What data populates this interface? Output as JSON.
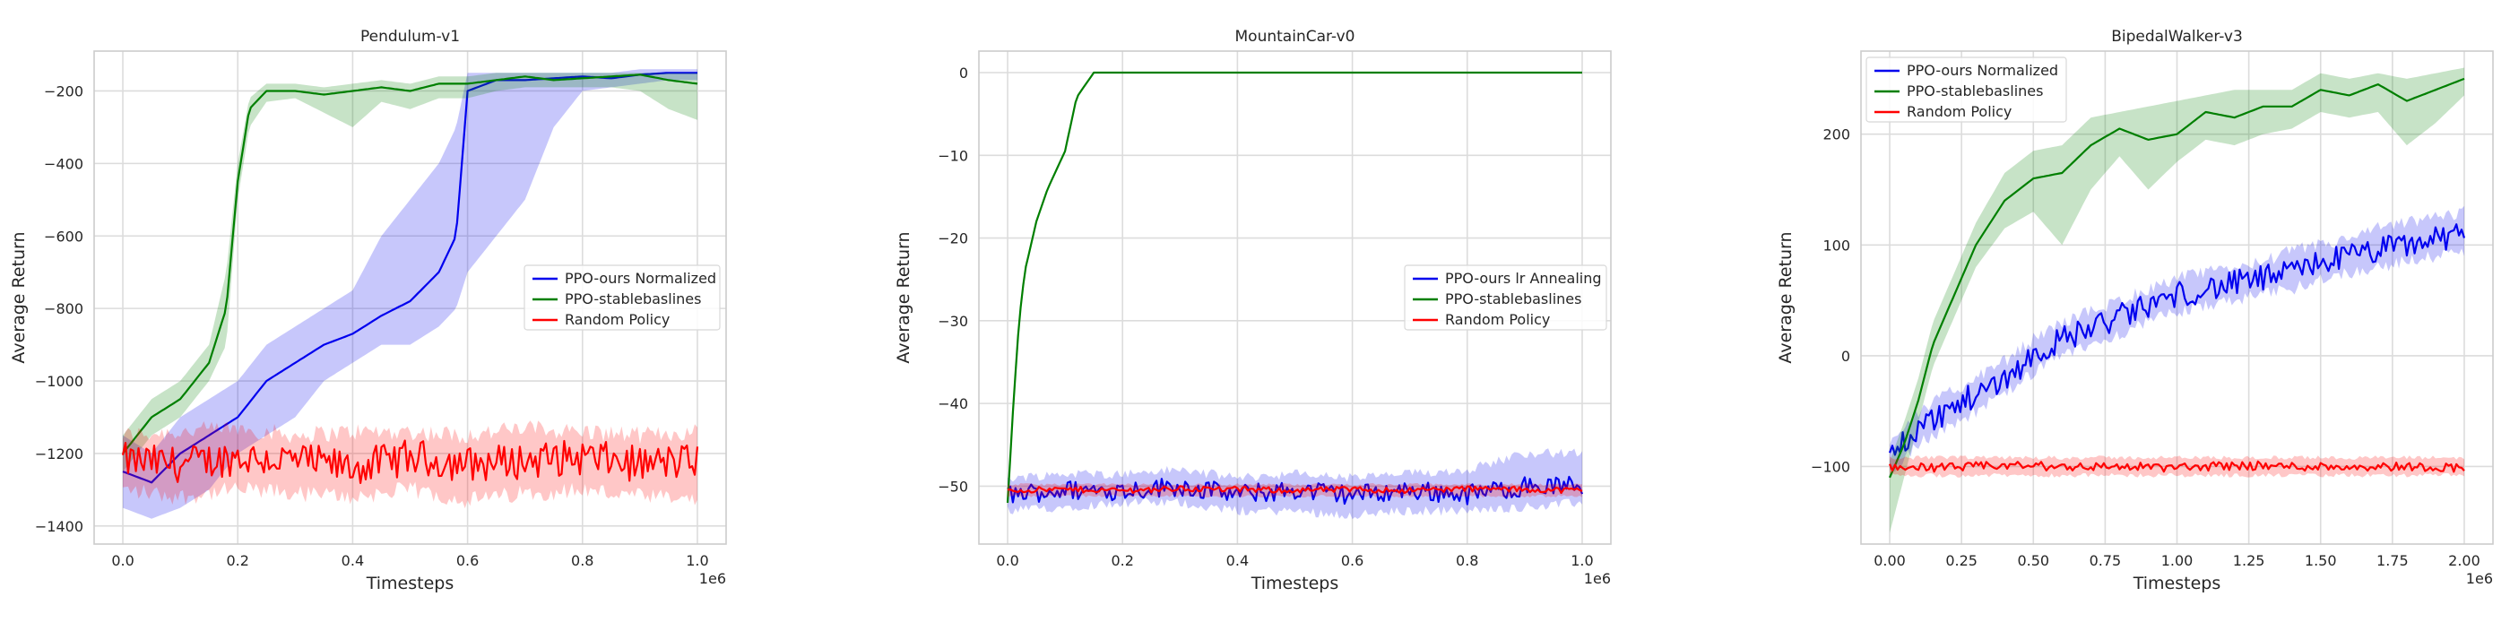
{
  "chart_data": [
    {
      "type": "line",
      "title": "Pendulum-v1",
      "xlabel": "Timesteps",
      "ylabel": "Average Return",
      "x_multiplier_label": "1e6",
      "xlim": [
        -0.05,
        1.05
      ],
      "ylim": [
        -1450,
        -90
      ],
      "xticks": [
        0.0,
        0.2,
        0.4,
        0.6,
        0.8,
        1.0
      ],
      "xtick_labels": [
        "0.0",
        "0.2",
        "0.4",
        "0.6",
        "0.8",
        "1.0"
      ],
      "yticks": [
        -1400,
        -1200,
        -1000,
        -800,
        -600,
        -400,
        -200
      ],
      "ytick_labels": [
        "−1400",
        "−1200",
        "−1000",
        "−800",
        "−600",
        "−400",
        "−200"
      ],
      "grid": true,
      "legend_position": "center-right",
      "series": [
        {
          "name": "PPO-ours Normalized",
          "color": "#0000ee",
          "x": [
            0,
            0.05,
            0.1,
            0.15,
            0.2,
            0.25,
            0.3,
            0.35,
            0.4,
            0.45,
            0.5,
            0.55,
            0.58,
            0.6,
            0.65,
            0.7,
            0.75,
            0.8,
            0.85,
            0.9,
            0.95,
            1.0
          ],
          "mean": [
            -1250,
            -1280,
            -1200,
            -1150,
            -1100,
            -1000,
            -950,
            -900,
            -870,
            -820,
            -780,
            -700,
            -600,
            -200,
            -170,
            -170,
            -165,
            -160,
            -165,
            -155,
            -150,
            -150
          ],
          "upper": [
            -1150,
            -1200,
            -1100,
            -1050,
            -1000,
            -900,
            -850,
            -800,
            -750,
            -600,
            -500,
            -400,
            -300,
            -150,
            -150,
            -150,
            -150,
            -150,
            -150,
            -140,
            -140,
            -140
          ],
          "lower": [
            -1350,
            -1380,
            -1350,
            -1300,
            -1200,
            -1150,
            -1100,
            -1000,
            -950,
            -900,
            -900,
            -850,
            -800,
            -700,
            -600,
            -500,
            -300,
            -200,
            -190,
            -180,
            -170,
            -170
          ]
        },
        {
          "name": "PPO-stablebaslines",
          "color": "#007f00",
          "x": [
            0,
            0.05,
            0.1,
            0.15,
            0.18,
            0.2,
            0.22,
            0.25,
            0.3,
            0.35,
            0.4,
            0.45,
            0.5,
            0.55,
            0.6,
            0.65,
            0.7,
            0.75,
            0.8,
            0.85,
            0.9,
            0.95,
            1.0
          ],
          "mean": [
            -1200,
            -1100,
            -1050,
            -950,
            -800,
            -450,
            -250,
            -200,
            -200,
            -210,
            -200,
            -190,
            -200,
            -180,
            -180,
            -170,
            -160,
            -170,
            -165,
            -160,
            -155,
            -170,
            -180
          ],
          "upper": [
            -1150,
            -1050,
            -1000,
            -900,
            -700,
            -400,
            -220,
            -180,
            -180,
            -190,
            -180,
            -170,
            -180,
            -160,
            -160,
            -150,
            -150,
            -150,
            -150,
            -150,
            -150,
            -150,
            -150
          ],
          "lower": [
            -1250,
            -1150,
            -1100,
            -1000,
            -900,
            -500,
            -300,
            -230,
            -220,
            -260,
            -300,
            -230,
            -250,
            -220,
            -220,
            -200,
            -190,
            -190,
            -190,
            -190,
            -200,
            -250,
            -280
          ]
        },
        {
          "name": "Random Policy",
          "color": "#ff0000",
          "x": [
            0,
            0.1,
            0.2,
            0.3,
            0.4,
            0.5,
            0.6,
            0.7,
            0.8,
            0.9,
            1.0
          ],
          "mean": [
            -1220,
            -1230,
            -1210,
            -1220,
            -1240,
            -1210,
            -1230,
            -1220,
            -1210,
            -1230,
            -1220
          ],
          "upper": [
            -1150,
            -1140,
            -1130,
            -1150,
            -1140,
            -1140,
            -1150,
            -1130,
            -1140,
            -1150,
            -1140
          ],
          "lower": [
            -1300,
            -1320,
            -1300,
            -1310,
            -1320,
            -1300,
            -1330,
            -1310,
            -1300,
            -1320,
            -1330
          ],
          "noise": 50
        }
      ]
    },
    {
      "type": "line",
      "title": "MountainCar-v0",
      "xlabel": "Timesteps",
      "ylabel": "Average Return",
      "x_multiplier_label": "1e6",
      "xlim": [
        -0.05,
        1.05
      ],
      "ylim": [
        -57,
        2.6
      ],
      "xticks": [
        0.0,
        0.2,
        0.4,
        0.6,
        0.8,
        1.0
      ],
      "xtick_labels": [
        "0.0",
        "0.2",
        "0.4",
        "0.6",
        "0.8",
        "1.0"
      ],
      "yticks": [
        -50,
        -40,
        -30,
        -20,
        -10,
        0
      ],
      "ytick_labels": [
        "−50",
        "−40",
        "−30",
        "−20",
        "−10",
        "0"
      ],
      "grid": true,
      "legend_position": "center-right",
      "series": [
        {
          "name": "PPO-ours lr Annealing",
          "color": "#0000ee",
          "x": [
            0,
            0.1,
            0.2,
            0.3,
            0.4,
            0.5,
            0.6,
            0.7,
            0.8,
            0.9,
            1.0
          ],
          "mean": [
            -51,
            -50.5,
            -50.5,
            -50,
            -51,
            -50.5,
            -51,
            -50.5,
            -51,
            -50,
            -50
          ],
          "upper": [
            -49,
            -48.5,
            -48.5,
            -48,
            -49,
            -48.5,
            -49,
            -48.5,
            -48,
            -46,
            -46
          ],
          "lower": [
            -53,
            -52.5,
            -52,
            -52,
            -53,
            -53,
            -53.5,
            -53,
            -53,
            -52.5,
            -52
          ],
          "noise": 1.2
        },
        {
          "name": "PPO-stablebaslines",
          "color": "#007f00",
          "x": [
            0,
            0.01,
            0.02,
            0.03,
            0.05,
            0.07,
            0.09,
            0.1,
            0.12,
            0.15,
            0.2,
            0.4,
            0.6,
            0.8,
            1.0
          ],
          "mean": [
            -52,
            -40,
            -30,
            -24,
            -18,
            -14,
            -11,
            -9.5,
            -3,
            0,
            0,
            0,
            0,
            0,
            0
          ]
        },
        {
          "name": "Random Policy",
          "color": "#ff0000",
          "x": [
            0,
            0.1,
            0.2,
            0.3,
            0.4,
            0.5,
            0.6,
            0.7,
            0.8,
            0.9,
            1.0
          ],
          "mean": [
            -50.5,
            -50.4,
            -50.5,
            -50.3,
            -50.4,
            -50.5,
            -50.4,
            -50.5,
            -50.3,
            -50.4,
            -50.5
          ],
          "upper": [
            -49.8,
            -49.8,
            -49.8,
            -49.8,
            -49.8,
            -49.8,
            -49.8,
            -49.8,
            -49.8,
            -49.8,
            -49.8
          ],
          "lower": [
            -51.2,
            -51.2,
            -51.2,
            -51.2,
            -51.2,
            -51.2,
            -51.2,
            -51.2,
            -51.2,
            -51.2,
            -51.2
          ],
          "noise": 0.35
        }
      ]
    },
    {
      "type": "line",
      "title": "BipedalWalker-v3",
      "xlabel": "Timesteps",
      "ylabel": "Average Return",
      "x_multiplier_label": "1e6",
      "xlim": [
        -0.1,
        2.1
      ],
      "ylim": [
        -170,
        275
      ],
      "xticks": [
        0.0,
        0.25,
        0.5,
        0.75,
        1.0,
        1.25,
        1.5,
        1.75,
        2.0
      ],
      "xtick_labels": [
        "0.00",
        "0.25",
        "0.50",
        "0.75",
        "1.00",
        "1.25",
        "1.50",
        "1.75",
        "2.00"
      ],
      "yticks": [
        -100,
        0,
        100,
        200
      ],
      "ytick_labels": [
        "−100",
        "0",
        "100",
        "200"
      ],
      "grid": true,
      "legend_position": "top-left",
      "series": [
        {
          "name": "PPO-ours Normalized",
          "color": "#0000ee",
          "x": [
            0,
            0.1,
            0.2,
            0.3,
            0.4,
            0.5,
            0.6,
            0.7,
            0.8,
            0.9,
            1.0,
            1.1,
            1.2,
            1.3,
            1.4,
            1.5,
            1.6,
            1.7,
            1.8,
            1.9,
            2.0
          ],
          "mean": [
            -90,
            -65,
            -50,
            -35,
            -20,
            0,
            15,
            25,
            35,
            45,
            55,
            60,
            65,
            70,
            75,
            85,
            90,
            95,
            100,
            105,
            110
          ],
          "upper": [
            -75,
            -50,
            -35,
            -20,
            -5,
            15,
            30,
            40,
            50,
            60,
            70,
            75,
            80,
            85,
            95,
            100,
            105,
            115,
            120,
            125,
            130
          ],
          "lower": [
            -105,
            -80,
            -65,
            -50,
            -35,
            -15,
            0,
            10,
            20,
            30,
            40,
            45,
            50,
            55,
            60,
            70,
            75,
            80,
            85,
            90,
            95
          ],
          "noise": 12
        },
        {
          "name": "PPO-stablebaslines",
          "color": "#007f00",
          "x": [
            0,
            0.05,
            0.1,
            0.15,
            0.2,
            0.25,
            0.3,
            0.4,
            0.5,
            0.6,
            0.7,
            0.8,
            0.9,
            1.0,
            1.1,
            1.2,
            1.3,
            1.4,
            1.5,
            1.6,
            1.7,
            1.8,
            1.9,
            2.0
          ],
          "mean": [
            -110,
            -80,
            -40,
            10,
            40,
            70,
            100,
            140,
            160,
            165,
            190,
            205,
            195,
            200,
            220,
            215,
            225,
            225,
            240,
            235,
            245,
            230,
            240,
            250
          ],
          "upper": [
            -95,
            -60,
            -20,
            30,
            60,
            90,
            120,
            165,
            185,
            190,
            215,
            220,
            225,
            230,
            235,
            240,
            240,
            240,
            255,
            250,
            255,
            250,
            255,
            260
          ],
          "lower": [
            -160,
            -110,
            -60,
            -10,
            20,
            50,
            80,
            115,
            130,
            100,
            150,
            180,
            150,
            175,
            195,
            190,
            200,
            205,
            220,
            215,
            220,
            190,
            210,
            235
          ]
        },
        {
          "name": "Random Policy",
          "color": "#ff0000",
          "x": [
            0,
            0.2,
            0.4,
            0.6,
            0.8,
            1.0,
            1.2,
            1.4,
            1.6,
            1.8,
            2.0
          ],
          "mean": [
            -100,
            -101,
            -99,
            -100,
            -100,
            -101,
            -99,
            -100,
            -100,
            -100,
            -101
          ],
          "upper": [
            -92,
            -92,
            -92,
            -92,
            -92,
            -92,
            -92,
            -92,
            -92,
            -92,
            -92
          ],
          "lower": [
            -108,
            -108,
            -108,
            -108,
            -108,
            -108,
            -108,
            -108,
            -108,
            -108,
            -108
          ],
          "noise": 4
        }
      ]
    }
  ]
}
